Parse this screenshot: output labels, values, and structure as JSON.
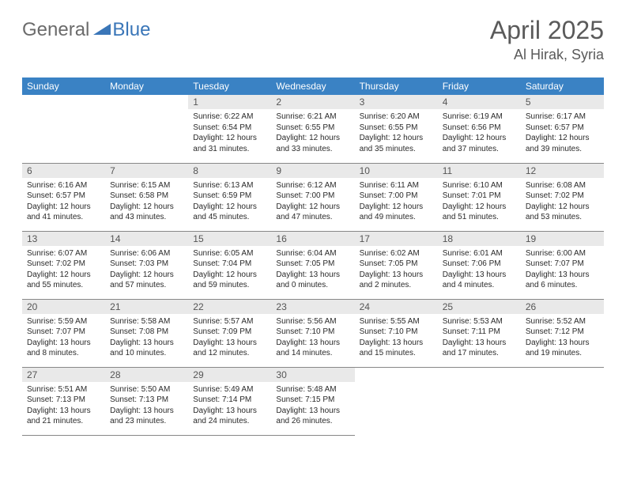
{
  "logo": {
    "part1": "General",
    "part2": "Blue"
  },
  "title": "April 2025",
  "location": "Al Hirak, Syria",
  "dayHeaders": [
    "Sunday",
    "Monday",
    "Tuesday",
    "Wednesday",
    "Thursday",
    "Friday",
    "Saturday"
  ],
  "colors": {
    "headerBg": "#3a82c4",
    "headerText": "#ffffff",
    "dayNumBg": "#e9e9e9",
    "border": "#888888",
    "logoGray": "#6b6b6b",
    "logoBlue": "#3a76b8",
    "titleColor": "#5a5a5a"
  },
  "weeks": [
    [
      null,
      null,
      {
        "n": "1",
        "sr": "6:22 AM",
        "ss": "6:54 PM",
        "dl": "12 hours and 31 minutes."
      },
      {
        "n": "2",
        "sr": "6:21 AM",
        "ss": "6:55 PM",
        "dl": "12 hours and 33 minutes."
      },
      {
        "n": "3",
        "sr": "6:20 AM",
        "ss": "6:55 PM",
        "dl": "12 hours and 35 minutes."
      },
      {
        "n": "4",
        "sr": "6:19 AM",
        "ss": "6:56 PM",
        "dl": "12 hours and 37 minutes."
      },
      {
        "n": "5",
        "sr": "6:17 AM",
        "ss": "6:57 PM",
        "dl": "12 hours and 39 minutes."
      }
    ],
    [
      {
        "n": "6",
        "sr": "6:16 AM",
        "ss": "6:57 PM",
        "dl": "12 hours and 41 minutes."
      },
      {
        "n": "7",
        "sr": "6:15 AM",
        "ss": "6:58 PM",
        "dl": "12 hours and 43 minutes."
      },
      {
        "n": "8",
        "sr": "6:13 AM",
        "ss": "6:59 PM",
        "dl": "12 hours and 45 minutes."
      },
      {
        "n": "9",
        "sr": "6:12 AM",
        "ss": "7:00 PM",
        "dl": "12 hours and 47 minutes."
      },
      {
        "n": "10",
        "sr": "6:11 AM",
        "ss": "7:00 PM",
        "dl": "12 hours and 49 minutes."
      },
      {
        "n": "11",
        "sr": "6:10 AM",
        "ss": "7:01 PM",
        "dl": "12 hours and 51 minutes."
      },
      {
        "n": "12",
        "sr": "6:08 AM",
        "ss": "7:02 PM",
        "dl": "12 hours and 53 minutes."
      }
    ],
    [
      {
        "n": "13",
        "sr": "6:07 AM",
        "ss": "7:02 PM",
        "dl": "12 hours and 55 minutes."
      },
      {
        "n": "14",
        "sr": "6:06 AM",
        "ss": "7:03 PM",
        "dl": "12 hours and 57 minutes."
      },
      {
        "n": "15",
        "sr": "6:05 AM",
        "ss": "7:04 PM",
        "dl": "12 hours and 59 minutes."
      },
      {
        "n": "16",
        "sr": "6:04 AM",
        "ss": "7:05 PM",
        "dl": "13 hours and 0 minutes."
      },
      {
        "n": "17",
        "sr": "6:02 AM",
        "ss": "7:05 PM",
        "dl": "13 hours and 2 minutes."
      },
      {
        "n": "18",
        "sr": "6:01 AM",
        "ss": "7:06 PM",
        "dl": "13 hours and 4 minutes."
      },
      {
        "n": "19",
        "sr": "6:00 AM",
        "ss": "7:07 PM",
        "dl": "13 hours and 6 minutes."
      }
    ],
    [
      {
        "n": "20",
        "sr": "5:59 AM",
        "ss": "7:07 PM",
        "dl": "13 hours and 8 minutes."
      },
      {
        "n": "21",
        "sr": "5:58 AM",
        "ss": "7:08 PM",
        "dl": "13 hours and 10 minutes."
      },
      {
        "n": "22",
        "sr": "5:57 AM",
        "ss": "7:09 PM",
        "dl": "13 hours and 12 minutes."
      },
      {
        "n": "23",
        "sr": "5:56 AM",
        "ss": "7:10 PM",
        "dl": "13 hours and 14 minutes."
      },
      {
        "n": "24",
        "sr": "5:55 AM",
        "ss": "7:10 PM",
        "dl": "13 hours and 15 minutes."
      },
      {
        "n": "25",
        "sr": "5:53 AM",
        "ss": "7:11 PM",
        "dl": "13 hours and 17 minutes."
      },
      {
        "n": "26",
        "sr": "5:52 AM",
        "ss": "7:12 PM",
        "dl": "13 hours and 19 minutes."
      }
    ],
    [
      {
        "n": "27",
        "sr": "5:51 AM",
        "ss": "7:13 PM",
        "dl": "13 hours and 21 minutes."
      },
      {
        "n": "28",
        "sr": "5:50 AM",
        "ss": "7:13 PM",
        "dl": "13 hours and 23 minutes."
      },
      {
        "n": "29",
        "sr": "5:49 AM",
        "ss": "7:14 PM",
        "dl": "13 hours and 24 minutes."
      },
      {
        "n": "30",
        "sr": "5:48 AM",
        "ss": "7:15 PM",
        "dl": "13 hours and 26 minutes."
      },
      null,
      null,
      null
    ]
  ],
  "labels": {
    "sunrise": "Sunrise:",
    "sunset": "Sunset:",
    "daylight": "Daylight:"
  }
}
